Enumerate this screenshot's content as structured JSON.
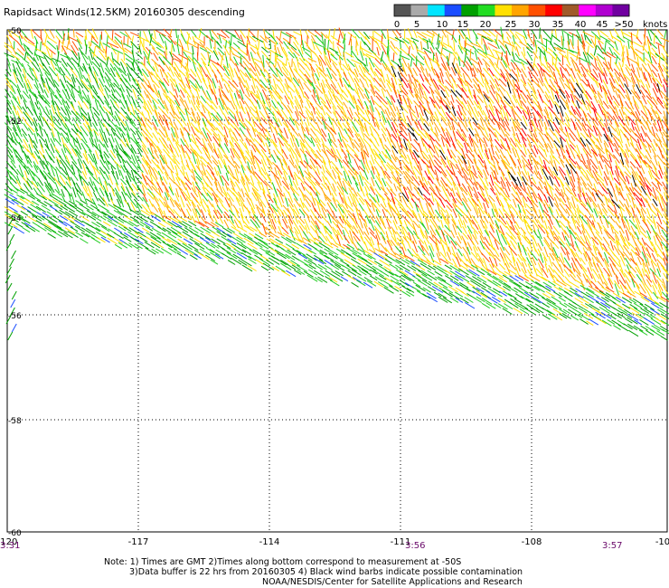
{
  "title": "Rapidsact Winds(12.5KM) 20160305 descending",
  "legend": {
    "unit": "knots",
    "labels": [
      "0",
      "5",
      "10",
      "15",
      "20",
      "25",
      "30",
      "35",
      "40",
      "45",
      ">50"
    ],
    "colors": [
      "#555555",
      "#aaaaaa",
      "#00e5ff",
      "#1a4dff",
      "#00a000",
      "#22dd22",
      "#ffe000",
      "#ffa500",
      "#ff5000",
      "#ff0000",
      "#a05a2a",
      "#ff00ff",
      "#b000d0",
      "#7000a0"
    ]
  },
  "axes": {
    "lon_labels": [
      "-120",
      "-117",
      "-114",
      "-111",
      "-108",
      "-10"
    ],
    "lat_labels": [
      "-50",
      "-52",
      "-54",
      "-56",
      "-58",
      "-60"
    ]
  },
  "times": [
    "3:31",
    "3:56",
    "3:57"
  ],
  "notes": [
    "Note: 1) Times are GMT 2)Times along bottom correspond to measurement at -50S",
    "3)Data buffer is 22 hrs from 20160305 4) Black wind barbs indicate possible contamination",
    "NOAA/NESDIS/Center for Satellite Applications and Research"
  ],
  "wind_colors": {
    "light": "#00a000",
    "moderate": "#22cc22",
    "fresh": "#ffe000",
    "strong": "#ffa500",
    "gale": "#ff5000",
    "storm": "#ff0000",
    "low": "#1a4dff",
    "contaminated": "#000000"
  }
}
